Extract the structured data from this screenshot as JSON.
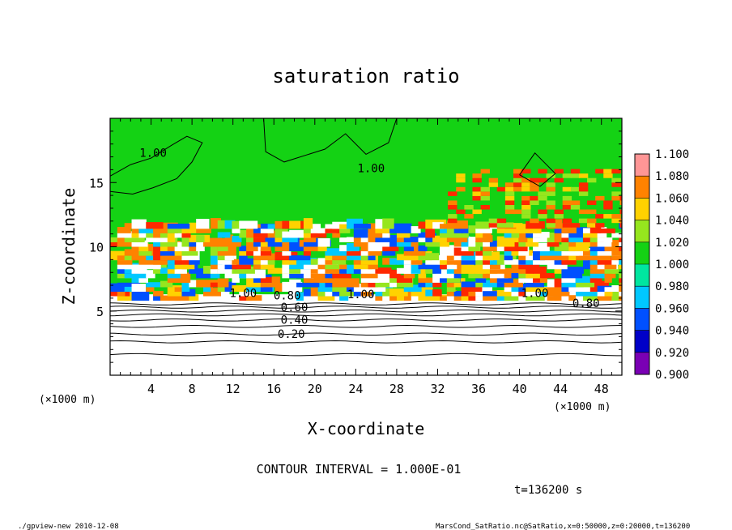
{
  "chart_data": {
    "type": "heatmap",
    "title": "saturation ratio",
    "xlabel": "X-coordinate",
    "ylabel": "Z-coordinate",
    "x_unit_left": "(×1000 m)",
    "x_unit_right": "(×1000 m)",
    "xlim": [
      0,
      50
    ],
    "ylim": [
      0,
      20
    ],
    "xticks": [
      4,
      8,
      12,
      16,
      20,
      24,
      28,
      32,
      36,
      40,
      44,
      48
    ],
    "yticks": [
      5,
      10,
      15
    ],
    "colorbar": {
      "levels": [
        0.9,
        0.92,
        0.94,
        0.96,
        0.98,
        1.0,
        1.02,
        1.04,
        1.06,
        1.08,
        1.1
      ],
      "labels": [
        "0.900",
        "0.920",
        "0.940",
        "0.960",
        "0.980",
        "1.000",
        "1.020",
        "1.040",
        "1.060",
        "1.080",
        "1.100"
      ],
      "colors": [
        "#7a00b4",
        "#0000c8",
        "#0050ff",
        "#00c8ff",
        "#00e6a0",
        "#14d214",
        "#96e61e",
        "#ffd200",
        "#ff8200",
        "#ff2800",
        "#ff9696"
      ]
    },
    "contour_labels": [
      {
        "text": "1.00",
        "x": 4.2,
        "z": 17.0
      },
      {
        "text": "1.00",
        "x": 25.5,
        "z": 15.8
      },
      {
        "text": "1.00",
        "x": 13.0,
        "z": 6.1
      },
      {
        "text": "1.00",
        "x": 24.5,
        "z": 6.0
      },
      {
        "text": "1.00",
        "x": 41.5,
        "z": 6.1
      },
      {
        "text": "0.80",
        "x": 17.3,
        "z": 5.9
      },
      {
        "text": "0.80",
        "x": 46.5,
        "z": 5.3
      },
      {
        "text": "0.60",
        "x": 18.0,
        "z": 5.0
      },
      {
        "text": "0.40",
        "x": 18.0,
        "z": 4.0
      },
      {
        "text": "0.20",
        "x": 17.7,
        "z": 2.9
      }
    ],
    "contour_interval": "CONTOUR INTERVAL = 1.000E-01",
    "time_label": "t=136200 s"
  },
  "footer": {
    "left": "./gpview-new   2010-12-08",
    "right": "MarsCond_SatRatio.nc@SatRatio,x=0:50000,z=0:20000,t=136200"
  }
}
